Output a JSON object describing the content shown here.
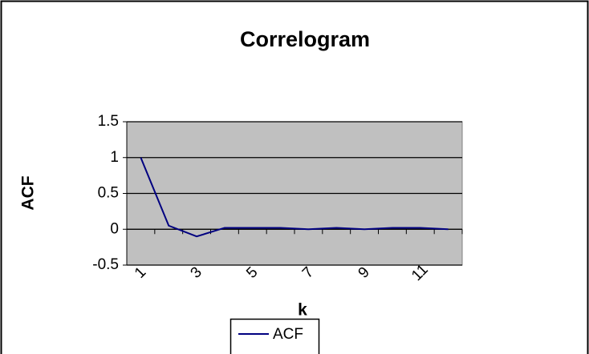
{
  "chart_data": {
    "type": "line",
    "title": "Correlogram",
    "x_label": "k",
    "y_label": "ACF",
    "categories": [
      1,
      null,
      3,
      null,
      5,
      null,
      7,
      null,
      9,
      null,
      11,
      null
    ],
    "series": [
      {
        "name": "ACF",
        "color": "#000080",
        "values": [
          1,
          0.05,
          -0.1,
          0.02,
          0.02,
          0.02,
          0,
          0.02,
          0,
          0.02,
          0.02,
          0
        ]
      }
    ],
    "ylim": [
      -0.5,
      1.5
    ],
    "yticks": [
      -0.5,
      0,
      0.5,
      1,
      1.5
    ],
    "grid": true,
    "plot_background": "#c0c0c0"
  }
}
